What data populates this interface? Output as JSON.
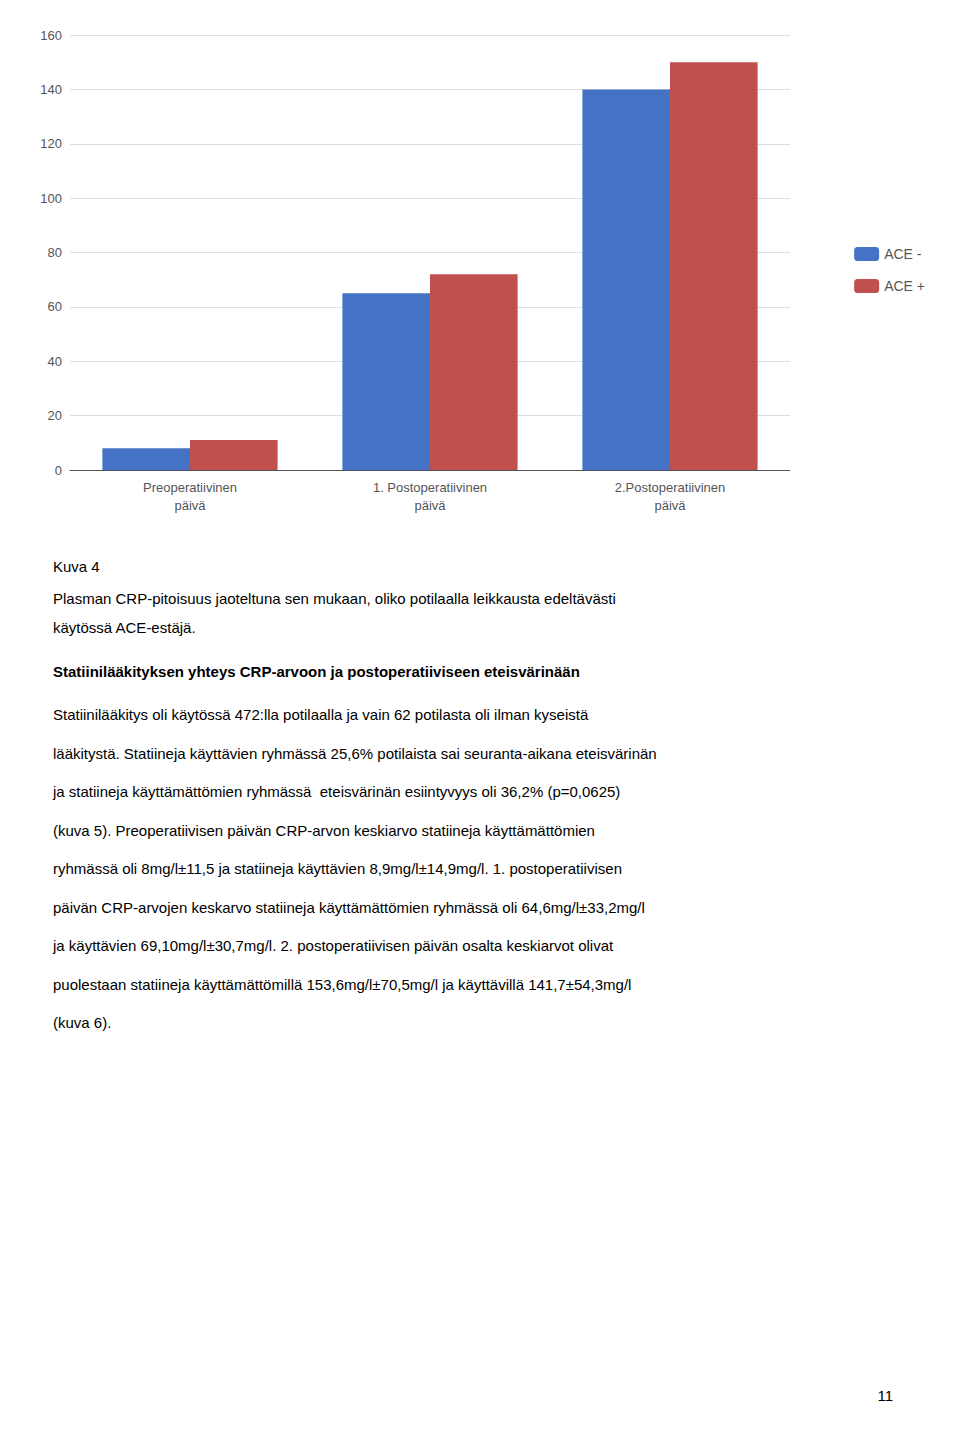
{
  "chart_data": {
    "type": "bar",
    "categories": [
      "Preoperatiivinen\npäivä",
      "1. Postoperatiivinen\npäivä",
      "2.Postoperatiivinen\npäivä"
    ],
    "series": [
      {
        "name": "ACE -",
        "color": "#4472C4",
        "values": [
          8,
          65,
          140
        ]
      },
      {
        "name": "ACE +",
        "color": "#C0504D",
        "values": [
          11,
          72,
          150
        ]
      }
    ],
    "ylim": [
      0,
      160
    ],
    "yticks": [
      0,
      20,
      40,
      60,
      80,
      100,
      120,
      140,
      160
    ],
    "grid": true,
    "legend": "right",
    "annotations": [
      "Kuva 4",
      "Plasman CRP-pitoisuus jaoteltuna sen mukaan, oliko potilaalla leikkausta edeltävästi",
      "käytössä ACE-estäjä.",
      "Statiinilääkityksen yhteys CRP-arvoon ja postoperatiiviseen eteisvärinään",
      "Statiinilääkitys oli käytössä 472:lla potilaalla ja vain 62 potilasta oli ilman kyseistä",
      "lääkitystä. Statiineja käyttävien ryhmässä 25,6% potilaista sai seuranta-aikana eteisvärinän",
      "ja statiineja käyttämättömien ryhmässä  eteisvärinän esiintyvyys oli 36,2% (p=0,0625)",
      "(kuva 5). Preoperatiivisen päivän CRP-arvon keskiarvo statiineja käyttämättömien",
      "ryhmässä oli 8mg/l±11,5 ja statiineja käyttävien 8,9mg/l±14,9mg/l. 1. postoperatiivisen",
      "päivän CRP-arvojen keskarvo statiineja käyttämättömien ryhmässä oli 64,6mg/l±33,2mg/l",
      "ja käyttävien 69,10mg/l±30,7mg/l. 2. postoperatiivisen päivän osalta keskiarvot olivat",
      "puolestaan statiineja käyttämättömillä 153,6mg/l±70,5mg/l ja käyttävillä 141,7±54,3mg/l",
      "(kuva 6).",
      "11"
    ]
  }
}
